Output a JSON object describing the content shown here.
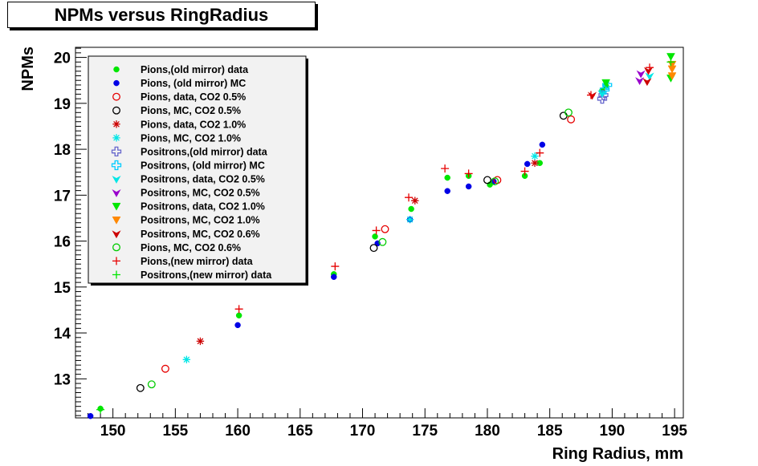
{
  "chart_data": {
    "type": "scatter",
    "title": "NPMs versus RingRadius",
    "xlabel": "Ring Radius, mm",
    "ylabel": "NPMs",
    "xlim": [
      147,
      195.7
    ],
    "ylim": [
      12.15,
      20.22
    ],
    "x_ticks": [
      150,
      155,
      160,
      165,
      170,
      175,
      180,
      185,
      190,
      195
    ],
    "y_ticks": [
      13,
      14,
      15,
      16,
      17,
      18,
      19,
      20
    ],
    "legend_position": "top-left",
    "grid": false,
    "series": [
      {
        "name": "Pions,(old mirror) data",
        "marker": "dot",
        "color": "#00e600",
        "points": [
          [
            149,
            12.35
          ],
          [
            160.1,
            14.38
          ],
          [
            167.7,
            15.28
          ],
          [
            171,
            16.1
          ],
          [
            173.9,
            16.7
          ],
          [
            176.8,
            17.38
          ],
          [
            178.5,
            17.42
          ],
          [
            180.2,
            17.23
          ],
          [
            183,
            17.42
          ],
          [
            184.2,
            17.7
          ],
          [
            189.2,
            19.28
          ],
          [
            189.5,
            19.38
          ]
        ]
      },
      {
        "name": "Pions, (old mirror) MC",
        "marker": "dot",
        "color": "#0000e6",
        "points": [
          [
            148.2,
            12.19
          ],
          [
            160,
            14.17
          ],
          [
            167.7,
            15.22
          ],
          [
            171.2,
            15.95
          ],
          [
            173.8,
            16.47
          ],
          [
            176.8,
            17.09
          ],
          [
            178.5,
            17.19
          ],
          [
            180.5,
            17.3
          ],
          [
            183.2,
            17.68
          ],
          [
            184.4,
            18.1
          ]
        ]
      },
      {
        "name": "Pions, data,  CO2 0.5%",
        "marker": "circle",
        "color": "#e60000",
        "points": [
          [
            154.2,
            13.22
          ],
          [
            171.8,
            16.26
          ],
          [
            180.8,
            17.33
          ],
          [
            186.7,
            18.65
          ]
        ]
      },
      {
        "name": "Pions, MC,  CO2 0.5%",
        "marker": "circle",
        "color": "#000000",
        "points": [
          [
            152.2,
            12.8
          ],
          [
            170.9,
            15.85
          ],
          [
            180,
            17.33
          ],
          [
            186.1,
            18.73
          ]
        ]
      },
      {
        "name": "Pions, data,  CO2 1.0%",
        "marker": "star",
        "color": "#cc0000",
        "points": [
          [
            157,
            13.82
          ],
          [
            174.2,
            16.88
          ],
          [
            183.8,
            17.7
          ]
        ]
      },
      {
        "name": "Pions, MC,  CO2 1.0%",
        "marker": "star",
        "color": "#00e6e6",
        "points": [
          [
            155.9,
            13.42
          ],
          [
            173.8,
            16.47
          ],
          [
            183.8,
            17.85
          ]
        ]
      },
      {
        "name": "Positrons,(old mirror) data",
        "marker": "cross-open",
        "color": "#6666cc",
        "points": [
          [
            189.2,
            19.1
          ],
          [
            189.3,
            19.18
          ]
        ]
      },
      {
        "name": "Positrons, (old mirror) MC",
        "marker": "cross-open",
        "color": "#00ccff",
        "points": [
          [
            189.4,
            19.3
          ],
          [
            189.6,
            19.4
          ]
        ]
      },
      {
        "name": "Positrons, data,  CO2 0.5%",
        "marker": "tri-star",
        "color": "#00e6e6",
        "points": [
          [
            189.2,
            19.22
          ],
          [
            193,
            19.6
          ]
        ]
      },
      {
        "name": "Positrons, MC,  CO2 0.5%",
        "marker": "tri-star",
        "color": "#9900cc",
        "points": [
          [
            192.2,
            19.5
          ],
          [
            192.3,
            19.65
          ]
        ]
      },
      {
        "name": "Positrons, data,  CO2 1.0%",
        "marker": "tri-down",
        "color": "#00e600",
        "points": [
          [
            194.7,
            19.55
          ],
          [
            194.7,
            20.02
          ],
          [
            189.5,
            19.45
          ]
        ]
      },
      {
        "name": "Positrons, MC,  CO2 1.0%",
        "marker": "tri-down",
        "color": "#ff8800",
        "points": [
          [
            194.8,
            19.6
          ],
          [
            194.8,
            19.85
          ],
          [
            194.8,
            19.75
          ]
        ]
      },
      {
        "name": "Positrons, MC,  CO2 0.6%",
        "marker": "tri-star",
        "color": "#cc0000",
        "points": [
          [
            188.4,
            19.18
          ],
          [
            192.8,
            19.48
          ],
          [
            192.9,
            19.72
          ]
        ]
      },
      {
        "name": "Pions, MC,  CO2 0.6%",
        "marker": "circle",
        "color": "#00cc00",
        "points": [
          [
            153.1,
            12.88
          ],
          [
            171.6,
            15.98
          ],
          [
            180.6,
            17.3
          ],
          [
            186.5,
            18.8
          ]
        ]
      },
      {
        "name": "Pions,(new mirror) data",
        "marker": "plus",
        "color": "#e60000",
        "points": [
          [
            160.1,
            14.52
          ],
          [
            167.8,
            15.45
          ],
          [
            171.1,
            16.23
          ],
          [
            173.7,
            16.95
          ],
          [
            176.6,
            17.58
          ],
          [
            178.5,
            17.47
          ],
          [
            183,
            17.52
          ],
          [
            184.2,
            17.92
          ],
          [
            188.3,
            19.18
          ],
          [
            193,
            19.78
          ]
        ]
      },
      {
        "name": "Positrons,(new mirror) data",
        "marker": "plus",
        "color": "#00e600",
        "points": [
          [
            149,
            12.33
          ],
          [
            194.7,
            19.9
          ]
        ]
      }
    ]
  }
}
